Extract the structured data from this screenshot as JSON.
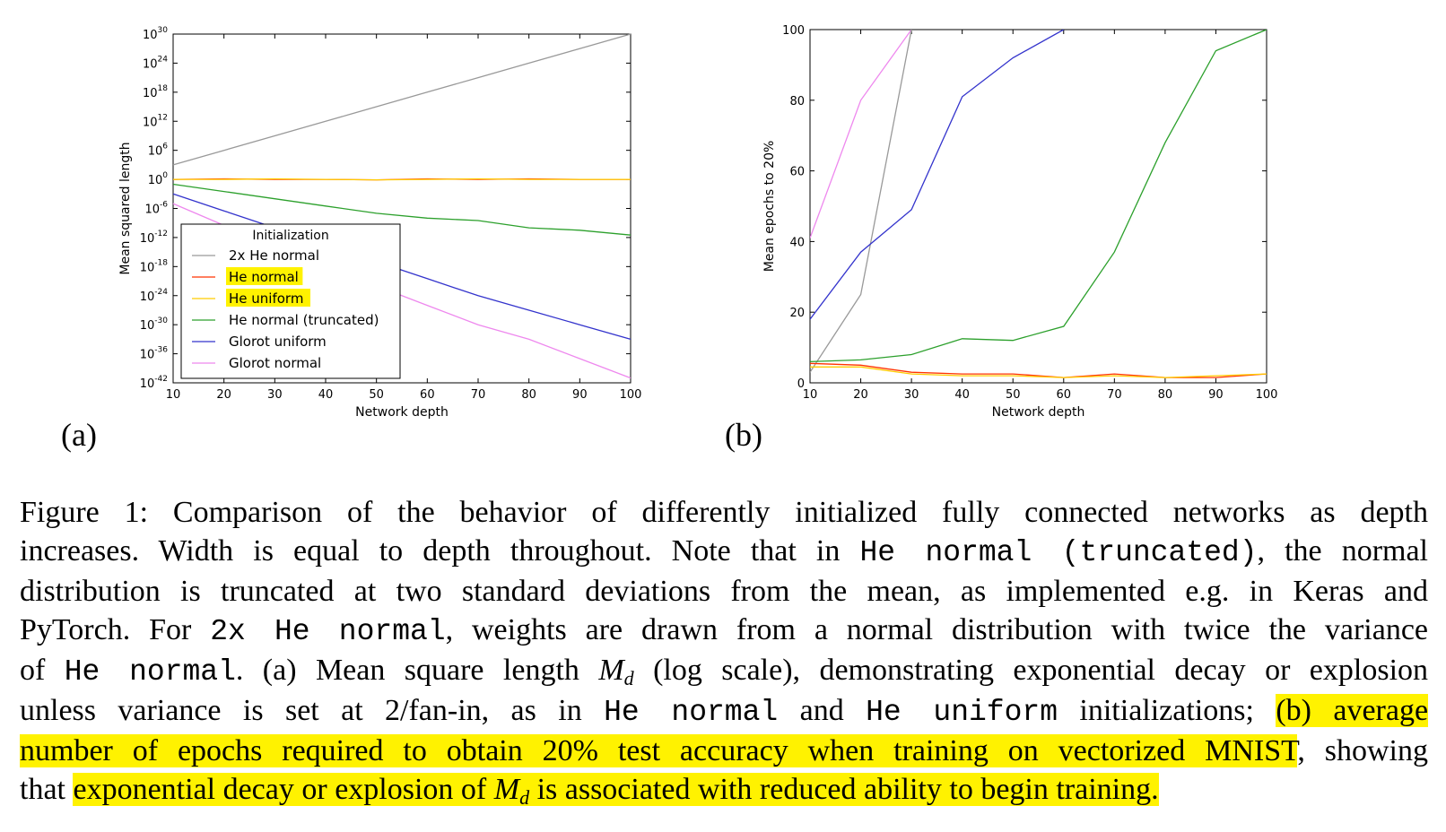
{
  "panel_labels": [
    "(a)",
    "(b)"
  ],
  "chart_data": [
    {
      "type": "line",
      "panel": "(a)",
      "xlabel": "Network depth",
      "ylabel": "Mean squared length",
      "xlim": [
        10,
        100
      ],
      "xticks": [
        10,
        20,
        30,
        40,
        50,
        60,
        70,
        80,
        90,
        100
      ],
      "yscale": "log",
      "ylim_exponent": [
        -42,
        30
      ],
      "ytick_exponents": [
        30,
        24,
        18,
        12,
        6,
        0,
        -6,
        -12,
        -18,
        -24,
        -30,
        -36,
        -42
      ],
      "ytick_base": "10",
      "grid": false,
      "legend": {
        "title": "Initialization",
        "position": "lower-left",
        "highlighted": [
          "He normal",
          "He uniform"
        ]
      },
      "series": [
        {
          "name": "2x He normal",
          "color": "#999999",
          "x": [
            10,
            20,
            30,
            40,
            50,
            60,
            70,
            80,
            90,
            100
          ],
          "y_exponent": [
            3,
            6,
            9,
            12,
            15,
            18,
            21,
            24,
            27,
            30
          ]
        },
        {
          "name": "He normal",
          "color": "#ff3300",
          "x": [
            10,
            20,
            30,
            40,
            50,
            60,
            70,
            80,
            90,
            100
          ],
          "y_exponent": [
            0,
            0.1,
            0,
            0,
            -0.1,
            0.1,
            0,
            0.1,
            0,
            0
          ]
        },
        {
          "name": "He uniform",
          "color": "#ffcc00",
          "x": [
            10,
            20,
            30,
            40,
            50,
            60,
            70,
            80,
            90,
            100
          ],
          "y_exponent": [
            0,
            0,
            0.1,
            0,
            -0.1,
            0,
            0.1,
            0,
            0,
            0
          ]
        },
        {
          "name": "He normal (truncated)",
          "color": "#2ca02c",
          "x": [
            10,
            20,
            30,
            40,
            50,
            60,
            70,
            80,
            90,
            100
          ],
          "y_exponent": [
            -1,
            -2.5,
            -4,
            -5.5,
            -7,
            -8,
            -8.5,
            -10,
            -10.5,
            -11.5
          ]
        },
        {
          "name": "Glorot uniform",
          "color": "#3333cc",
          "x": [
            10,
            20,
            30,
            40,
            50,
            60,
            70,
            80,
            90,
            100
          ],
          "y_exponent": [
            -3,
            -6.5,
            -10,
            -13.5,
            -17,
            -20.5,
            -24,
            -27,
            -30,
            -33
          ]
        },
        {
          "name": "Glorot normal",
          "color": "#ee88ee",
          "x": [
            10,
            20,
            30,
            40,
            50,
            60,
            70,
            80,
            90,
            100
          ],
          "y_exponent": [
            -5,
            -9.5,
            -14,
            -18,
            -22,
            -26,
            -30,
            -33,
            -37,
            -41
          ]
        }
      ]
    },
    {
      "type": "line",
      "panel": "(b)",
      "xlabel": "Network depth",
      "ylabel": "Mean epochs to 20%",
      "xlim": [
        10,
        100
      ],
      "ylim": [
        0,
        100
      ],
      "xticks": [
        10,
        20,
        30,
        40,
        50,
        60,
        70,
        80,
        90,
        100
      ],
      "yticks": [
        0,
        20,
        40,
        60,
        80,
        100
      ],
      "grid": false,
      "series": [
        {
          "name": "Glorot normal",
          "color": "#ee88ee",
          "x": [
            10,
            20,
            30
          ],
          "y": [
            41,
            80,
            100
          ]
        },
        {
          "name": "2x He normal",
          "color": "#999999",
          "x": [
            10,
            20,
            30
          ],
          "y": [
            3,
            25,
            100
          ]
        },
        {
          "name": "Glorot uniform",
          "color": "#3333cc",
          "x": [
            10,
            20,
            30,
            40,
            50,
            60
          ],
          "y": [
            18,
            37,
            49,
            81,
            92,
            100
          ]
        },
        {
          "name": "He normal (truncated)",
          "color": "#2ca02c",
          "x": [
            10,
            20,
            30,
            40,
            50,
            60,
            70,
            80,
            90,
            100
          ],
          "y": [
            6,
            6.5,
            8,
            12.5,
            12,
            16,
            37,
            68,
            94,
            100
          ]
        },
        {
          "name": "He normal",
          "color": "#ff3300",
          "x": [
            10,
            20,
            30,
            40,
            50,
            60,
            70,
            80,
            90,
            100
          ],
          "y": [
            5.5,
            5,
            3,
            2.5,
            2.5,
            1.5,
            2.5,
            1.5,
            1.5,
            2.5
          ]
        },
        {
          "name": "He uniform",
          "color": "#ffcc00",
          "x": [
            10,
            20,
            30,
            40,
            50,
            60,
            70,
            80,
            90,
            100
          ],
          "y": [
            4.5,
            4.5,
            2.5,
            2,
            2,
            1.5,
            2,
            1.5,
            2,
            2.5
          ]
        }
      ]
    }
  ],
  "caption": {
    "l1": "Figure 1: Comparison of the behavior of differently initialized fully connected networks as depth",
    "l2a": "increases. Width is equal to depth throughout. Note that in",
    "l2b": "He normal (truncated)",
    "l2c": ", the normal",
    "l3": "distribution is truncated at two standard deviations from the mean, as implemented e.g. in Keras and",
    "l4a": "PyTorch. For",
    "l4b": "2x He normal",
    "l4c": ", weights are drawn from a normal distribution with twice the variance",
    "l5a": "of",
    "l5b": "He normal",
    "l5c": ". (a) Mean square length",
    "l5m": "M",
    "l5sub": "d",
    "l5d": "(log scale), demonstrating exponential decay or explosion",
    "l6a": "unless variance is set at 2/fan-in, as in",
    "l6b": "He normal",
    "l6c": "and",
    "l6d": "He uniform",
    "l6e": "initializations;",
    "l6f": "(b) average",
    "l7a": "number of epochs required to obtain 20% test accuracy when training on vectorized MNIST",
    "l7b": ", showing",
    "l8a": "that",
    "l8b": "exponential decay or explosion of",
    "l8m": "M",
    "l8sub": "d",
    "l8c": "is associated with reduced ability to begin training."
  },
  "colors": {
    "highlight": "#fff200"
  }
}
